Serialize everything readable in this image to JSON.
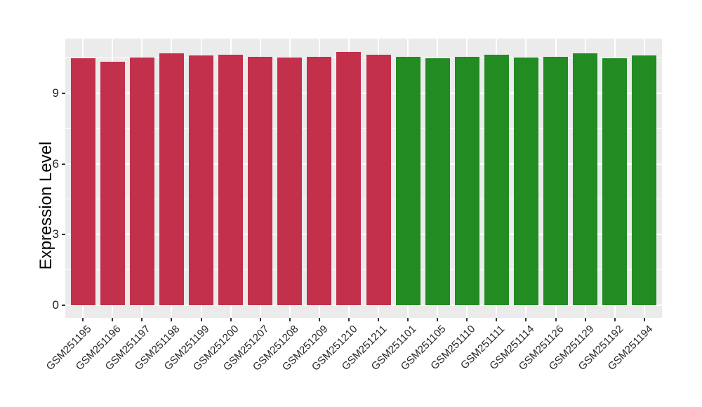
{
  "figure": {
    "background": "#ffffff",
    "panel_background": "#ebebeb",
    "grid_color": "#ffffff",
    "tick_mark_color": "#333333",
    "tick_label_color": "#262626",
    "axis_title_color": "#000000"
  },
  "chart_data": {
    "type": "bar",
    "title": "",
    "xlabel": "",
    "ylabel": "Expression Level",
    "ylim": [
      -0.54,
      11.32
    ],
    "yticks": [
      0,
      3,
      6,
      9
    ],
    "yticks_minor": [
      1.5,
      4.5,
      7.5,
      10.5
    ],
    "grid": "on",
    "legend": "none",
    "x_tick_rotation_deg": 45,
    "categories": [
      "GSM251195",
      "GSM251196",
      "GSM251197",
      "GSM251198",
      "GSM251199",
      "GSM251200",
      "GSM251207",
      "GSM251208",
      "GSM251209",
      "GSM251210",
      "GSM251211",
      "GSM251101",
      "GSM251105",
      "GSM251110",
      "GSM251111",
      "GSM251114",
      "GSM251126",
      "GSM251129",
      "GSM251192",
      "GSM251194"
    ],
    "values": [
      10.5,
      10.34,
      10.52,
      10.7,
      10.61,
      10.64,
      10.55,
      10.52,
      10.56,
      10.75,
      10.63,
      10.55,
      10.5,
      10.55,
      10.62,
      10.53,
      10.54,
      10.7,
      10.5,
      10.6
    ],
    "bar_groups": [
      "red",
      "red",
      "red",
      "red",
      "red",
      "red",
      "red",
      "red",
      "red",
      "red",
      "red",
      "green",
      "green",
      "green",
      "green",
      "green",
      "green",
      "green",
      "green",
      "green"
    ],
    "palette": {
      "red": "#c2304b",
      "green": "#228b22"
    }
  }
}
